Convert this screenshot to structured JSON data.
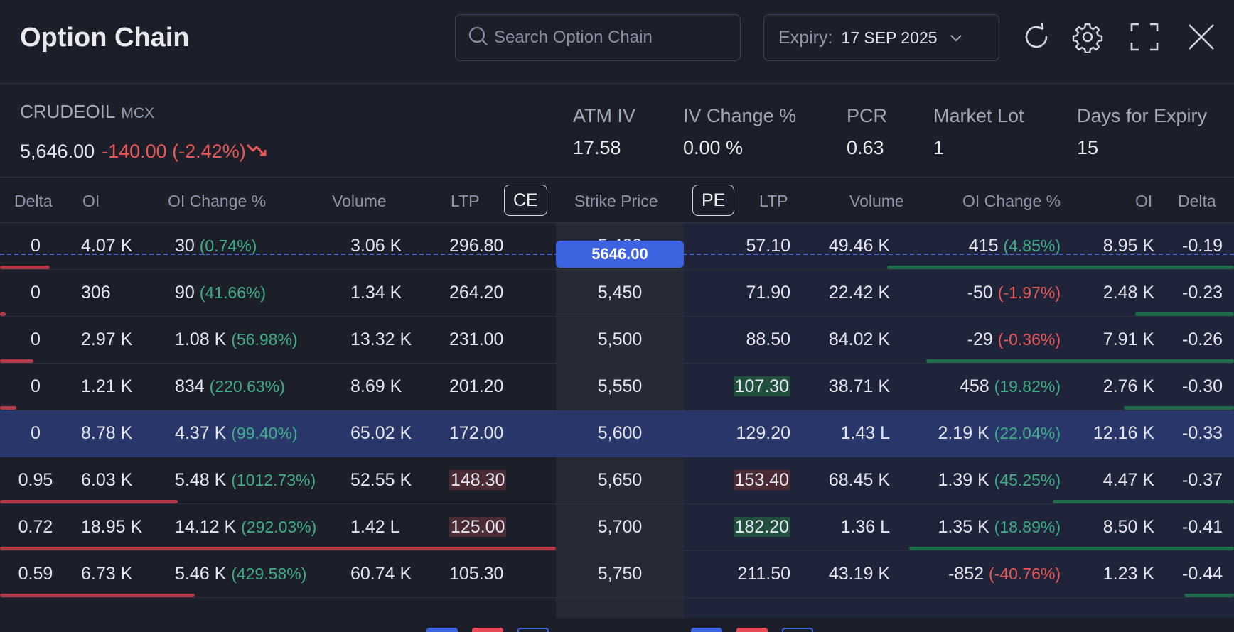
{
  "header": {
    "title": "Option Chain",
    "search_placeholder": "Search Option Chain",
    "expiry_label": "Expiry:",
    "expiry_value": "17 SEP 2025",
    "icons": [
      "refresh-icon",
      "gear-icon",
      "fullscreen-icon",
      "close-icon"
    ]
  },
  "instrument": {
    "symbol": "CRUDEOIL",
    "exchange": "MCX",
    "price": "5,646.00",
    "change": "-140.00 (-2.42%)"
  },
  "stats": [
    {
      "label": "ATM IV",
      "value": "17.58"
    },
    {
      "label": "IV Change %",
      "value": "0.00 %"
    },
    {
      "label": "PCR",
      "value": "0.63"
    },
    {
      "label": "Market Lot",
      "value": "1"
    },
    {
      "label": "Days for Expiry",
      "value": "15"
    }
  ],
  "columns": {
    "delta": "Delta",
    "oi": "OI",
    "oi_change": "OI Change %",
    "volume": "Volume",
    "ltp": "LTP",
    "ce": "CE",
    "strike": "Strike Price",
    "pe": "PE",
    "pe_ltp": "LTP",
    "pe_volume": "Volume",
    "pe_oi_change": "OI Change %",
    "pe_oi": "OI",
    "pe_delta": "Delta"
  },
  "spot_price": "5646.00",
  "rows": [
    {
      "c_delta": "0",
      "c_oi": "4.07 K",
      "c_oic": "30",
      "c_oicp": "(0.74%)",
      "c_oicp_sign": "pos",
      "c_vol": "3.06 K",
      "c_ltp": "296.80",
      "strike": "5,400",
      "p_ltp": "57.10",
      "p_vol": "49.46 K",
      "p_oic": "415",
      "p_oicp": "(4.85%)",
      "p_oicp_sign": "pos",
      "p_oi": "8.95 K",
      "p_delta": "-0.19",
      "c_bar": 0.09,
      "p_bar": 0.63
    },
    {
      "c_delta": "0",
      "c_oi": "306",
      "c_oic": "90",
      "c_oicp": "(41.66%)",
      "c_oicp_sign": "pos",
      "c_vol": "1.34 K",
      "c_ltp": "264.20",
      "strike": "5,450",
      "p_ltp": "71.90",
      "p_vol": "22.42 K",
      "p_oic": "-50",
      "p_oicp": "(-1.97%)",
      "p_oicp_sign": "neg",
      "p_oi": "2.48 K",
      "p_delta": "-0.23",
      "c_bar": 0.01,
      "p_bar": 0.18
    },
    {
      "c_delta": "0",
      "c_oi": "2.97 K",
      "c_oic": "1.08 K",
      "c_oicp": "(56.98%)",
      "c_oicp_sign": "pos",
      "c_vol": "13.32 K",
      "c_ltp": "231.00",
      "strike": "5,500",
      "p_ltp": "88.50",
      "p_vol": "84.02 K",
      "p_oic": "-29",
      "p_oicp": "(-0.36%)",
      "p_oicp_sign": "neg",
      "p_oi": "7.91 K",
      "p_delta": "-0.26",
      "c_bar": 0.06,
      "p_bar": 0.56
    },
    {
      "c_delta": "0",
      "c_oi": "1.21 K",
      "c_oic": "834",
      "c_oicp": "(220.63%)",
      "c_oicp_sign": "pos",
      "c_vol": "8.69 K",
      "c_ltp": "201.20",
      "strike": "5,550",
      "p_ltp": "107.30",
      "p_ltp_hl": "green",
      "p_vol": "38.71 K",
      "p_oic": "458",
      "p_oicp": "(19.82%)",
      "p_oicp_sign": "pos",
      "p_oi": "2.76 K",
      "p_delta": "-0.30",
      "c_bar": 0.03,
      "p_bar": 0.2
    },
    {
      "c_delta": "0",
      "c_oi": "8.78 K",
      "c_oic": "4.37 K",
      "c_oicp": "(99.40%)",
      "c_oicp_sign": "pos",
      "c_vol": "65.02 K",
      "c_ltp": "172.00",
      "strike": "5,600",
      "p_ltp": "129.20",
      "p_vol": "1.43 L",
      "p_oic": "2.19 K",
      "p_oicp": "(22.04%)",
      "p_oicp_sign": "pos",
      "p_oi": "12.16 K",
      "p_delta": "-0.33",
      "c_bar": 0.0,
      "p_bar": 0.0,
      "atm": true
    },
    {
      "c_delta": "0.95",
      "c_oi": "6.03 K",
      "c_oic": "5.48 K",
      "c_oicp": "(1012.73%)",
      "c_oicp_sign": "pos",
      "c_vol": "52.55 K",
      "c_ltp": "148.30",
      "c_ltp_hl": "red",
      "strike": "5,650",
      "p_ltp": "153.40",
      "p_ltp_hl": "red",
      "p_vol": "68.45 K",
      "p_oic": "1.39 K",
      "p_oicp": "(45.25%)",
      "p_oicp_sign": "pos",
      "p_oi": "4.47 K",
      "p_delta": "-0.37",
      "c_bar": 0.32,
      "p_bar": 0.33
    },
    {
      "c_delta": "0.72",
      "c_oi": "18.95 K",
      "c_oic": "14.12 K",
      "c_oicp": "(292.03%)",
      "c_oicp_sign": "pos",
      "c_vol": "1.42 L",
      "c_ltp": "125.00",
      "c_ltp_hl": "red",
      "strike": "5,700",
      "p_ltp": "182.20",
      "p_ltp_hl": "green",
      "p_vol": "1.36 L",
      "p_oic": "1.35 K",
      "p_oicp": "(18.89%)",
      "p_oicp_sign": "pos",
      "p_oi": "8.50 K",
      "p_delta": "-0.41",
      "c_bar": 1.0,
      "p_bar": 0.59
    },
    {
      "c_delta": "0.59",
      "c_oi": "6.73 K",
      "c_oic": "5.46 K",
      "c_oicp": "(429.58%)",
      "c_oicp_sign": "pos",
      "c_vol": "60.74 K",
      "c_ltp": "105.30",
      "strike": "5,750",
      "p_ltp": "211.50",
      "p_vol": "43.19 K",
      "p_oic": "-852",
      "p_oicp": "(-40.76%)",
      "p_oicp_sign": "neg",
      "p_oi": "1.23 K",
      "p_delta": "-0.44",
      "c_bar": 0.35,
      "p_bar": 0.09
    }
  ]
}
